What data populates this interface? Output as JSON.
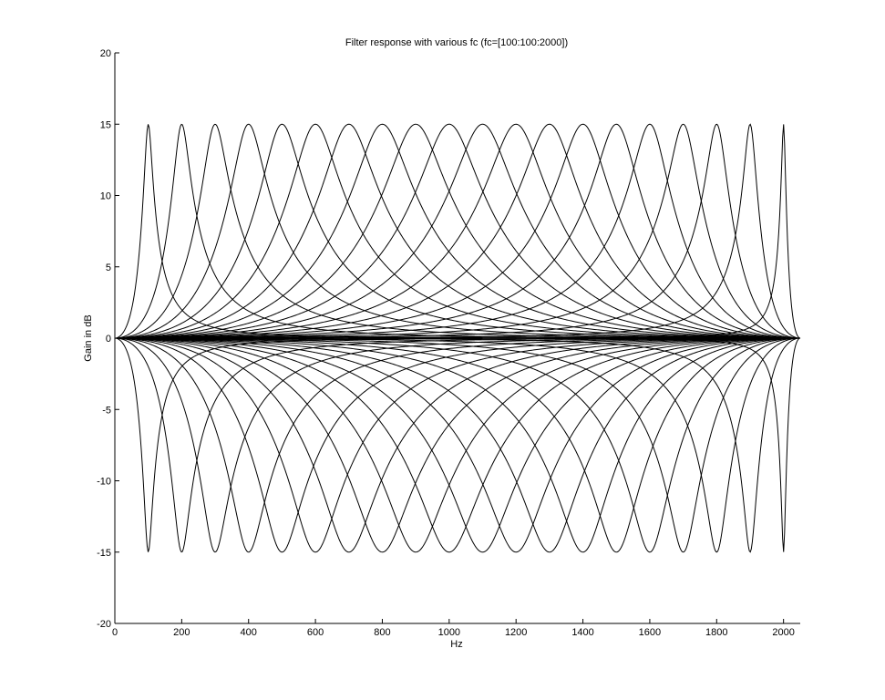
{
  "chart_data": {
    "type": "line",
    "title": "Filter response with various fc  (fc=[100:100:2000])",
    "xlabel": "Hz",
    "ylabel": "Gain in dB",
    "xlim": [
      0,
      2050
    ],
    "ylim": [
      -20,
      20
    ],
    "xticks": [
      0,
      200,
      400,
      600,
      800,
      1000,
      1200,
      1400,
      1600,
      1800,
      2000
    ],
    "yticks": [
      -20,
      -15,
      -10,
      -5,
      0,
      5,
      10,
      15,
      20
    ],
    "grid": false,
    "legend": "none",
    "line_color": "#000000",
    "center_frequencies": [
      100,
      200,
      300,
      400,
      500,
      600,
      700,
      800,
      900,
      1000,
      1100,
      1200,
      1300,
      1400,
      1500,
      1600,
      1700,
      1800,
      1900,
      2000
    ],
    "gains_db": [
      15,
      -15
    ],
    "frequency_range": [
      0,
      2050
    ],
    "series": [
      {
        "fc": 100,
        "gain": 15
      },
      {
        "fc": 100,
        "gain": -15
      },
      {
        "fc": 200,
        "gain": 15
      },
      {
        "fc": 200,
        "gain": -15
      },
      {
        "fc": 300,
        "gain": 15
      },
      {
        "fc": 300,
        "gain": -15
      },
      {
        "fc": 400,
        "gain": 15
      },
      {
        "fc": 400,
        "gain": -15
      },
      {
        "fc": 500,
        "gain": 15
      },
      {
        "fc": 500,
        "gain": -15
      },
      {
        "fc": 600,
        "gain": 15
      },
      {
        "fc": 600,
        "gain": -15
      },
      {
        "fc": 700,
        "gain": 15
      },
      {
        "fc": 700,
        "gain": -15
      },
      {
        "fc": 800,
        "gain": 15
      },
      {
        "fc": 800,
        "gain": -15
      },
      {
        "fc": 900,
        "gain": 15
      },
      {
        "fc": 900,
        "gain": -15
      },
      {
        "fc": 1000,
        "gain": 15
      },
      {
        "fc": 1000,
        "gain": -15
      },
      {
        "fc": 1100,
        "gain": 15
      },
      {
        "fc": 1100,
        "gain": -15
      },
      {
        "fc": 1200,
        "gain": 15
      },
      {
        "fc": 1200,
        "gain": -15
      },
      {
        "fc": 1300,
        "gain": 15
      },
      {
        "fc": 1300,
        "gain": -15
      },
      {
        "fc": 1400,
        "gain": 15
      },
      {
        "fc": 1400,
        "gain": -15
      },
      {
        "fc": 1500,
        "gain": 15
      },
      {
        "fc": 1500,
        "gain": -15
      },
      {
        "fc": 1600,
        "gain": 15
      },
      {
        "fc": 1600,
        "gain": -15
      },
      {
        "fc": 1700,
        "gain": 15
      },
      {
        "fc": 1700,
        "gain": -15
      },
      {
        "fc": 1800,
        "gain": 15
      },
      {
        "fc": 1800,
        "gain": -15
      },
      {
        "fc": 1900,
        "gain": 15
      },
      {
        "fc": 1900,
        "gain": -15
      },
      {
        "fc": 2000,
        "gain": 15
      },
      {
        "fc": 2000,
        "gain": -15
      }
    ]
  }
}
